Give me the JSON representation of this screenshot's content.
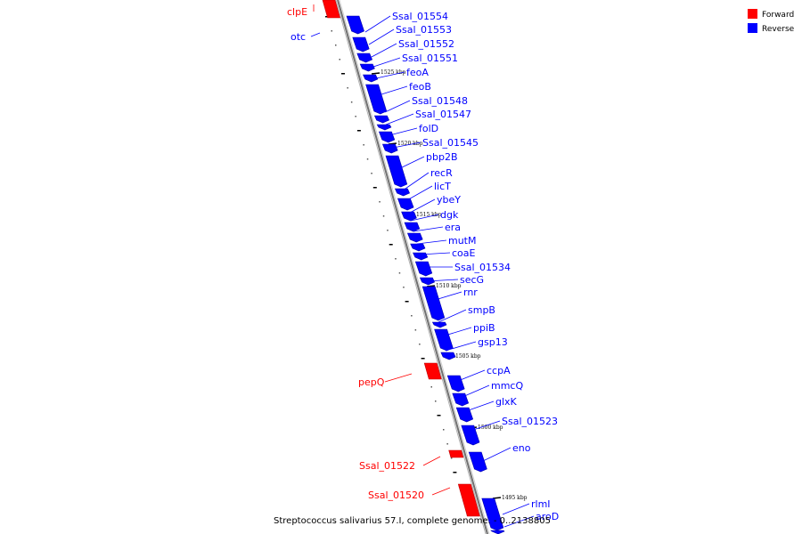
{
  "caption": "Streptococcus salivarius 57.I, complete genome. - 0..2138805",
  "legend": [
    {
      "label": "Forward",
      "color": "#ff0000"
    },
    {
      "label": "Reverse",
      "color": "#0000ff"
    }
  ],
  "colors": {
    "forward": "#ff0000",
    "reverse": "#0000ff",
    "backbone": "#808080"
  },
  "scale_labels": [
    "1525 kbp",
    "1520 kbp",
    "1515 kbp",
    "1510 kbp",
    "1505 kbp",
    "1500 kbp",
    "1495 kbp"
  ],
  "genes": [
    {
      "name": "clpE",
      "strand": "forward"
    },
    {
      "name": "otc",
      "strand": "reverse"
    },
    {
      "name": "Ssal_01554",
      "strand": "reverse"
    },
    {
      "name": "Ssal_01553",
      "strand": "reverse"
    },
    {
      "name": "Ssal_01552",
      "strand": "reverse"
    },
    {
      "name": "Ssal_01551",
      "strand": "reverse"
    },
    {
      "name": "feoA",
      "strand": "reverse"
    },
    {
      "name": "feoB",
      "strand": "reverse"
    },
    {
      "name": "Ssal_01548",
      "strand": "reverse"
    },
    {
      "name": "Ssal_01547",
      "strand": "reverse"
    },
    {
      "name": "folD",
      "strand": "reverse"
    },
    {
      "name": "Ssal_01545",
      "strand": "reverse"
    },
    {
      "name": "pbp2B",
      "strand": "reverse"
    },
    {
      "name": "recR",
      "strand": "reverse"
    },
    {
      "name": "licT",
      "strand": "reverse"
    },
    {
      "name": "ybeY",
      "strand": "reverse"
    },
    {
      "name": "dgk",
      "strand": "reverse"
    },
    {
      "name": "era",
      "strand": "reverse"
    },
    {
      "name": "mutM",
      "strand": "reverse"
    },
    {
      "name": "coaE",
      "strand": "reverse"
    },
    {
      "name": "Ssal_01534",
      "strand": "reverse"
    },
    {
      "name": "secG",
      "strand": "reverse"
    },
    {
      "name": "rnr",
      "strand": "reverse"
    },
    {
      "name": "smpB",
      "strand": "reverse"
    },
    {
      "name": "ppiB",
      "strand": "reverse"
    },
    {
      "name": "gsp13",
      "strand": "reverse"
    },
    {
      "name": "pepQ",
      "strand": "forward"
    },
    {
      "name": "ccpA",
      "strand": "reverse"
    },
    {
      "name": "mmcQ",
      "strand": "reverse"
    },
    {
      "name": "glxK",
      "strand": "reverse"
    },
    {
      "name": "Ssal_01523",
      "strand": "reverse"
    },
    {
      "name": "eno",
      "strand": "reverse"
    },
    {
      "name": "Ssal_01522",
      "strand": "forward"
    },
    {
      "name": "Ssal_01520",
      "strand": "forward"
    },
    {
      "name": "rlmI",
      "strand": "reverse"
    },
    {
      "name": "aroD",
      "strand": "reverse"
    }
  ]
}
